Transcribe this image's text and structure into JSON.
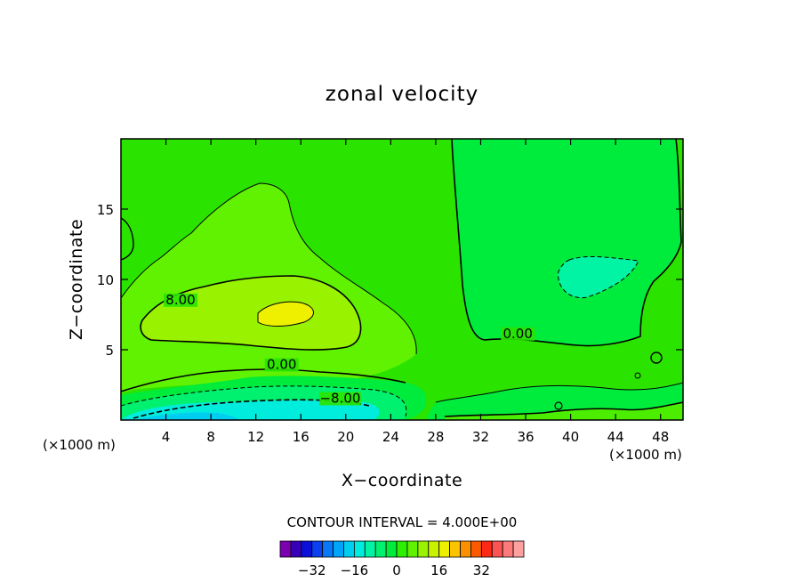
{
  "chart_data": {
    "type": "heatmap",
    "title": "zonal velocity",
    "xlabel": "X−coordinate",
    "ylabel": "Z−coordinate",
    "x_unit_left": "(×1000 m)",
    "x_unit_right": "(×1000 m)",
    "xlim": [
      0,
      50
    ],
    "ylim": [
      0,
      20
    ],
    "x_ticks": [
      4,
      8,
      12,
      16,
      20,
      24,
      28,
      32,
      36,
      40,
      44,
      48
    ],
    "y_ticks": [
      5,
      10,
      15
    ],
    "contour_interval_label": "CONTOUR INTERVAL = 4.000E+00",
    "contour_labels": [
      {
        "text": "8.00",
        "x": 5.3,
        "y": 8.3
      },
      {
        "text": "0.00",
        "x": 14.3,
        "y": 3.7
      },
      {
        "text": "−8.00",
        "x": 19.5,
        "y": 1.3
      },
      {
        "text": "0.00",
        "x": 35.3,
        "y": 5.9
      }
    ],
    "colorbar": {
      "levels": [
        -36,
        -32,
        -28,
        -24,
        -20,
        -16,
        -12,
        -8,
        -4,
        0,
        4,
        8,
        12,
        16,
        20,
        24,
        28,
        32,
        36
      ],
      "colors": [
        "#7b00b0",
        "#3700b8",
        "#0a10d8",
        "#0a40ee",
        "#0878f6",
        "#00a4f8",
        "#00cef0",
        "#00ecdc",
        "#00f4a4",
        "#00f070",
        "#00ec3c",
        "#2cf000",
        "#60f200",
        "#98f200",
        "#c8f200",
        "#eef000",
        "#fcc400",
        "#fc9000",
        "#fc5a00",
        "#fc2a14",
        "#fc5454",
        "#fc7a7a",
        "#fca0a0"
      ],
      "tick_labels": [
        "−32",
        "−16",
        "0",
        "16",
        "32"
      ],
      "tick_values": [
        -32,
        -16,
        0,
        16,
        32
      ]
    }
  }
}
